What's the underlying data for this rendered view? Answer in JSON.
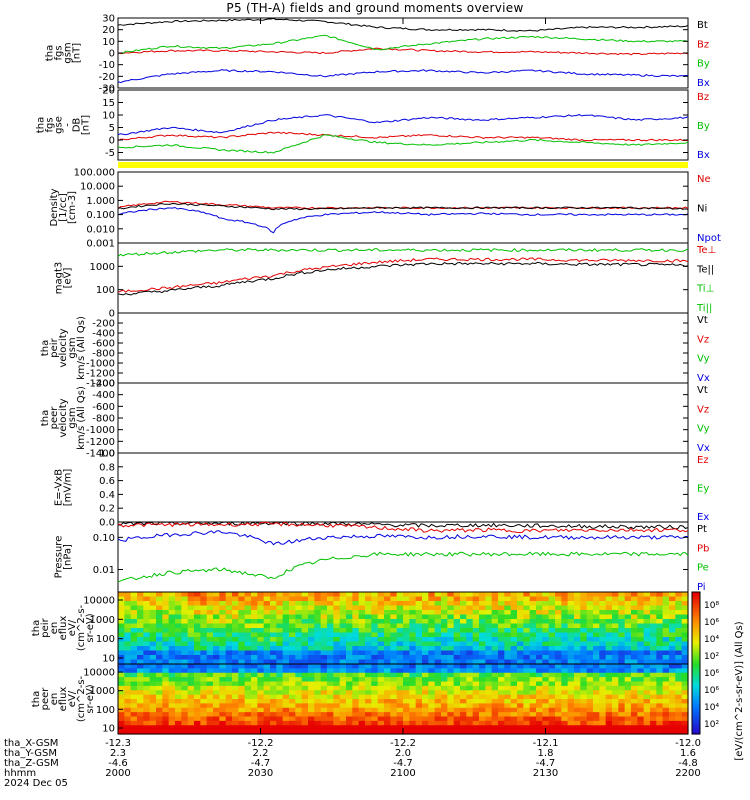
{
  "title": "P5 (TH-A) fields and ground moments overview",
  "chart_data": [
    {
      "type": "line",
      "panel": "fgs_gsm",
      "ylabel": [
        "tha",
        "fgs",
        "gsm",
        "[nT]"
      ],
      "ylim": [
        -30,
        30
      ],
      "yticks": [
        "30",
        "20",
        "10",
        "0",
        "-10",
        "-20",
        "-30"
      ],
      "legend": [
        {
          "label": "Bt",
          "color": "#000000"
        },
        {
          "label": "Bz",
          "color": "#e00000"
        },
        {
          "label": "By",
          "color": "#00c000"
        },
        {
          "label": "Bx",
          "color": "#0000e0"
        }
      ],
      "series": [
        {
          "name": "Bt",
          "values": [
            24,
            27,
            28,
            29,
            27,
            22,
            20,
            20,
            19,
            22,
            22,
            23
          ]
        },
        {
          "name": "Bz",
          "values": [
            0,
            2,
            2,
            1,
            0,
            4,
            2,
            1,
            1,
            0,
            -1,
            0
          ]
        },
        {
          "name": "By",
          "values": [
            0,
            6,
            4,
            8,
            15,
            3,
            8,
            12,
            14,
            12,
            10,
            10
          ]
        },
        {
          "name": "Bx",
          "values": [
            -25,
            -18,
            -15,
            -16,
            -20,
            -16,
            -15,
            -17,
            -15,
            -18,
            -19,
            -20
          ]
        }
      ]
    },
    {
      "type": "line",
      "panel": "fgs_gse",
      "ylabel": [
        "tha",
        "fgs",
        "gse",
        "-",
        "DB",
        "[nT]"
      ],
      "ylim": [
        -8,
        20
      ],
      "yticks": [
        "20",
        "15",
        "10",
        "5",
        "0",
        "-5"
      ],
      "legend": [
        {
          "label": "Bz",
          "color": "#e00000"
        },
        {
          "label": "By",
          "color": "#00c000"
        },
        {
          "label": "Bx",
          "color": "#0000e0"
        }
      ],
      "series": [
        {
          "name": "Bz",
          "values": [
            0,
            2,
            1,
            3,
            2,
            1,
            2,
            1,
            1,
            0,
            0,
            0
          ]
        },
        {
          "name": "By",
          "values": [
            -3,
            -2,
            -4,
            -5,
            2,
            -1,
            -2,
            -1,
            0,
            -1,
            -2,
            -1
          ]
        },
        {
          "name": "Bx",
          "values": [
            2,
            5,
            3,
            8,
            10,
            7,
            9,
            8,
            9,
            10,
            8,
            9
          ]
        }
      ]
    },
    {
      "type": "line",
      "panel": "density",
      "ylabel": [
        "Density",
        "[1/cc]",
        "[cm-3]"
      ],
      "yscale": "log",
      "ylim": [
        0.001,
        100
      ],
      "yticks": [
        "100.000",
        "10.000",
        "1.000",
        "0.100",
        "0.010",
        "0.001"
      ],
      "legend": [
        {
          "label": "Ne",
          "color": "#e00000"
        },
        {
          "label": "Ni",
          "color": "#000000"
        },
        {
          "label": "Npot",
          "color": "#0000e0"
        }
      ],
      "series": [
        {
          "name": "Ne",
          "values": [
            0.3,
            0.8,
            0.5,
            0.3,
            0.3,
            0.3,
            0.3,
            0.3,
            0.3,
            0.3,
            0.3,
            0.3
          ]
        },
        {
          "name": "Ni",
          "values": [
            0.25,
            0.6,
            0.4,
            0.25,
            0.25,
            0.3,
            0.3,
            0.3,
            0.3,
            0.3,
            0.3,
            0.25
          ]
        },
        {
          "name": "Npot",
          "values": [
            0.1,
            0.3,
            0.05,
            0.005,
            0.1,
            0.15,
            0.1,
            0.12,
            0.1,
            0.1,
            0.1,
            0.1
          ]
        }
      ]
    },
    {
      "type": "line",
      "panel": "temperature",
      "ylabel": [
        "magt3",
        "[eV]"
      ],
      "yscale": "log",
      "ylim": [
        10,
        10000
      ],
      "yticks": [
        "1000",
        "100"
      ],
      "legend": [
        {
          "label": "Te⊥",
          "color": "#e00000"
        },
        {
          "label": "Te||",
          "color": "#000000"
        },
        {
          "label": "Ti⊥",
          "color": "#00c000"
        },
        {
          "label": "Ti||",
          "color": "#00c000"
        }
      ],
      "series": [
        {
          "name": "Te⊥",
          "values": [
            80,
            120,
            200,
            400,
            900,
            1500,
            2000,
            2000,
            2000,
            1800,
            1800,
            1700
          ]
        },
        {
          "name": "Te||",
          "values": [
            60,
            90,
            150,
            300,
            700,
            1000,
            1300,
            1300,
            1300,
            1200,
            1200,
            1100
          ]
        },
        {
          "name": "Ti",
          "values": [
            3000,
            4000,
            5000,
            5000,
            5000,
            5000,
            5000,
            5000,
            5000,
            5000,
            5000,
            5000
          ]
        }
      ]
    },
    {
      "type": "line",
      "panel": "peir_velocity",
      "ylabel": [
        "tha",
        "peir",
        "velocity",
        "gsm",
        "km/s (All Qs)"
      ],
      "ylim": [
        -1400,
        0
      ],
      "yticks": [
        "0",
        "-200",
        "-400",
        "-600",
        "-800",
        "-1000",
        "-1200",
        "-1400"
      ],
      "legend": [
        {
          "label": "Vt",
          "color": "#000000"
        },
        {
          "label": "Vz",
          "color": "#e00000"
        },
        {
          "label": "Vy",
          "color": "#00c000"
        },
        {
          "label": "Vx",
          "color": "#0000e0"
        }
      ]
    },
    {
      "type": "line",
      "panel": "peer_velocity",
      "ylabel": [
        "tha",
        "peer",
        "velocity",
        "gsm",
        "km/s (All Qs)"
      ],
      "ylim": [
        -1400,
        -200
      ],
      "yticks": [
        "-200",
        "-400",
        "-600",
        "-800",
        "-1000",
        "-1200",
        "-1400"
      ],
      "legend": [
        {
          "label": "Vt",
          "color": "#000000"
        },
        {
          "label": "Vz",
          "color": "#e00000"
        },
        {
          "label": "Vy",
          "color": "#00c000"
        },
        {
          "label": "Vx",
          "color": "#0000e0"
        }
      ]
    },
    {
      "type": "line",
      "panel": "efield",
      "ylabel": [
        "E=-VxB",
        "[mV/m]"
      ],
      "ylim": [
        0,
        1
      ],
      "yticks": [
        "1.0",
        "0.8",
        "0.6",
        "0.4",
        "0.2",
        "0.0"
      ],
      "legend": [
        {
          "label": "Ez",
          "color": "#e00000"
        },
        {
          "label": "Ey",
          "color": "#00c000"
        },
        {
          "label": "Ex",
          "color": "#0000e0"
        }
      ]
    },
    {
      "type": "line",
      "panel": "pressure",
      "ylabel": [
        "Pressure",
        "[nPa]"
      ],
      "yscale": "log",
      "ylim": [
        0.002,
        0.3
      ],
      "yticks": [
        "0.10",
        "0.01"
      ],
      "legend": [
        {
          "label": "Pt",
          "color": "#000000"
        },
        {
          "label": "Pb",
          "color": "#e00000"
        },
        {
          "label": "Pe",
          "color": "#00c000"
        },
        {
          "label": "Pi",
          "color": "#0000e0"
        }
      ],
      "series": [
        {
          "name": "Pt",
          "values": [
            0.26,
            0.27,
            0.27,
            0.28,
            0.27,
            0.25,
            0.23,
            0.24,
            0.23,
            0.22,
            0.21,
            0.21
          ]
        },
        {
          "name": "Pb",
          "values": [
            0.24,
            0.25,
            0.25,
            0.26,
            0.24,
            0.2,
            0.16,
            0.17,
            0.16,
            0.17,
            0.17,
            0.17
          ]
        },
        {
          "name": "Pe",
          "values": [
            0.004,
            0.008,
            0.01,
            0.005,
            0.02,
            0.03,
            0.03,
            0.03,
            0.03,
            0.03,
            0.03,
            0.03
          ]
        },
        {
          "name": "Pi",
          "values": [
            0.08,
            0.12,
            0.15,
            0.06,
            0.1,
            0.11,
            0.1,
            0.11,
            0.1,
            0.1,
            0.1,
            0.1
          ]
        }
      ]
    },
    {
      "type": "heatmap",
      "panel": "peir_en_eflux",
      "ylabel": [
        "tha",
        "peir",
        "en",
        "eflux",
        "eV/",
        "(cm^2-s-",
        "sr-eV)"
      ],
      "yscale": "log",
      "yticks": [
        "10000",
        "1000",
        "100",
        "10"
      ]
    },
    {
      "type": "heatmap",
      "panel": "peer_en_eflux",
      "ylabel": [
        "tha",
        "peer",
        "en",
        "eflux",
        "eV/",
        "(cm^2-s-",
        "sr-eV)"
      ],
      "yscale": "log",
      "yticks": [
        "10000",
        "1000",
        "100",
        "10"
      ]
    }
  ],
  "colorbar": {
    "label": "[eV/(cm^2-s-sr-eV)] (All Qs)",
    "ticks": [
      "10⁸",
      "10⁶",
      "10⁴",
      "10²",
      "10⁶",
      "10⁶",
      "10⁴",
      "10²"
    ]
  },
  "xaxis": {
    "rows": [
      {
        "label": "tha_X-GSM",
        "values": [
          "-12.3",
          "-12.2",
          "-12.2",
          "-12.1",
          "-12.0"
        ]
      },
      {
        "label": "tha_Y-GSM",
        "values": [
          "2.3",
          "2.2",
          "2.0",
          "1.8",
          "1.6"
        ]
      },
      {
        "label": "tha_Z-GSM",
        "values": [
          "-4.6",
          "-4.7",
          "-4.7",
          "-4.7",
          "-4.8"
        ]
      },
      {
        "label": "hhmm",
        "values": [
          "2000",
          "2030",
          "2100",
          "2130",
          "2200"
        ]
      }
    ],
    "date": "2024 Dec 05"
  }
}
